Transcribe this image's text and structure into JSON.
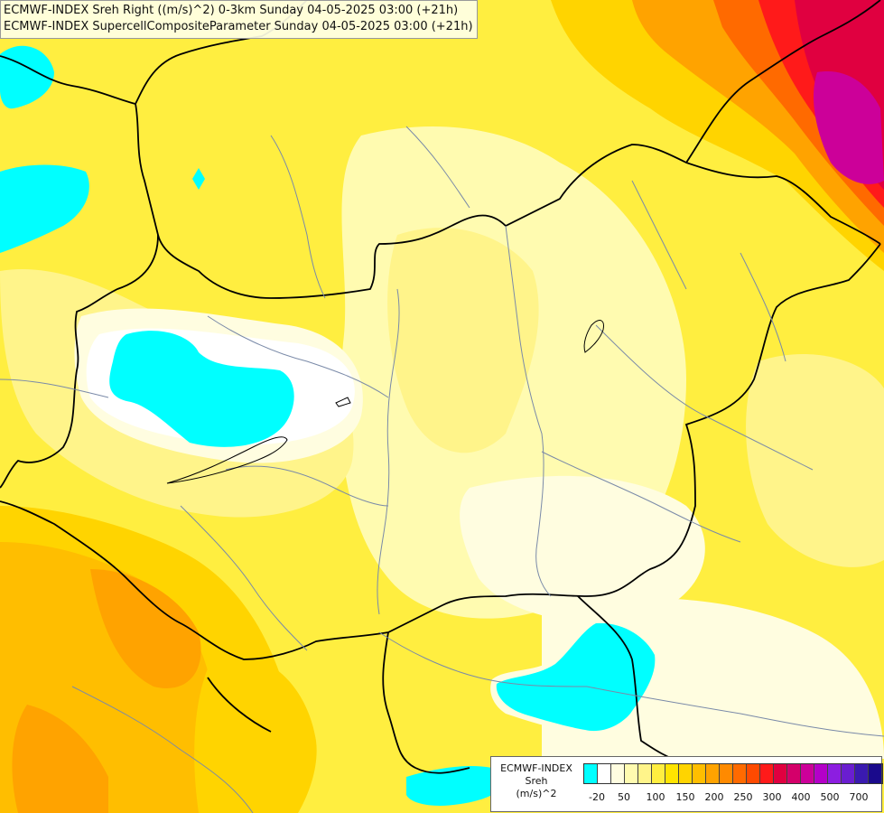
{
  "title": {
    "line1": "ECMWF-INDEX Sreh Right ((m/s)^2) 0-3km Sunday 04-05-2025 03:00 (+21h)",
    "line2": "ECMWF-INDEX SupercellCompositeParameter Sunday 04-05-2025 03:00 (+21h)"
  },
  "legend": {
    "title": "ECMWF-INDEX",
    "variable": "Sreh",
    "unit": "(m/s)^2",
    "colors": [
      "#00ffff",
      "#ffffff",
      "#fffde0",
      "#fffbb0",
      "#fff48a",
      "#ffee40",
      "#ffe400",
      "#ffd400",
      "#ffbe00",
      "#ffa300",
      "#ff8a00",
      "#ff6a00",
      "#ff4a00",
      "#ff1a1a",
      "#e00040",
      "#d4006a",
      "#cc0099",
      "#b400c8",
      "#8c1ee0",
      "#6a1ed0",
      "#3a1ab0",
      "#1a0a8c"
    ],
    "labels": [
      "-20",
      "50",
      "100",
      "150",
      "200",
      "250",
      "300",
      "400",
      "500",
      "700"
    ]
  }
}
